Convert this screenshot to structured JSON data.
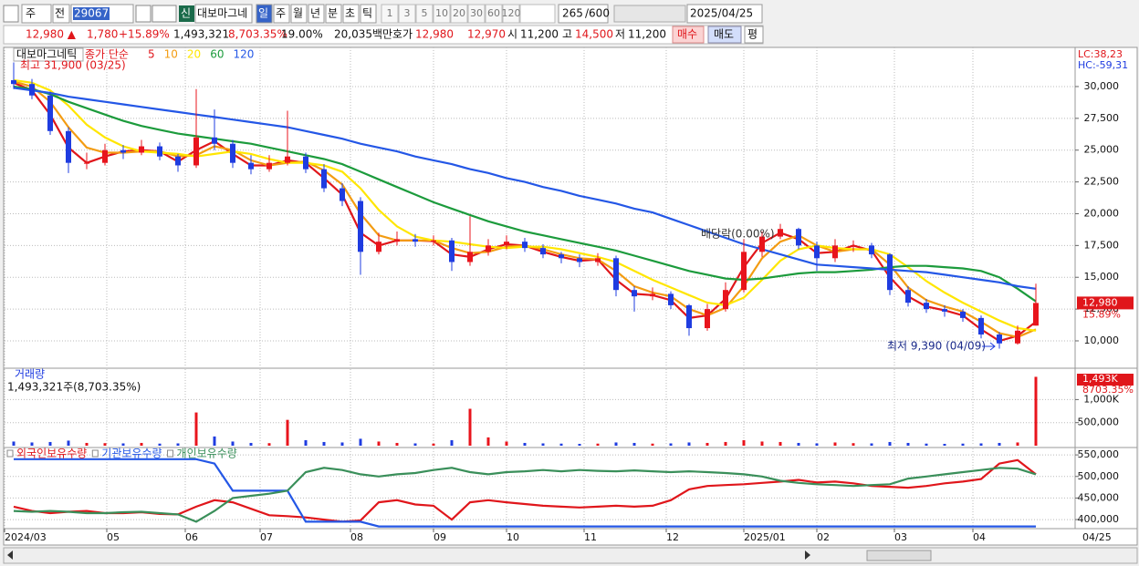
{
  "toolbar": {
    "period_button": "주",
    "prev_button": "전",
    "code": "290670",
    "new_badge": "신",
    "name": "대보마그네",
    "intervals": [
      "일",
      "주",
      "월",
      "년",
      "분",
      "초",
      "틱"
    ],
    "multipliers": [
      "1",
      "3",
      "5",
      "10",
      "20",
      "30",
      "60",
      "120"
    ],
    "count": "265",
    "count_max": "/600",
    "date": "2025/04/25"
  },
  "quote": {
    "price": "12,980 ▲",
    "change": "1,780",
    "change_rate": "+15.89%",
    "volume": "1,493,321",
    "volume_rate": "8,703.35%",
    "turnover": "19.00%",
    "amount": "20,035백만",
    "ask_label": "호가",
    "ask": "12,980",
    "bid": "12,970",
    "open_label": "시",
    "open": "11,200",
    "high_label": "고",
    "high": "14,500",
    "low_label": "저",
    "low": "11,200",
    "buy": "매수",
    "sell": "매도",
    "avg": "평"
  },
  "chart_data": [
    {
      "type": "candlestick",
      "title": "대보마그네틱",
      "legend_prefix": "종가 단순",
      "up_color": "#e8141c",
      "down_color": "#1f3ce0",
      "open": [
        30500,
        30200,
        29300,
        26500,
        24000,
        24000,
        25000,
        24800,
        25300,
        24500,
        23800,
        26000,
        25500,
        24000,
        23500,
        24000,
        24500,
        23500,
        22000,
        21000,
        17000,
        17800,
        18000,
        17800,
        17900,
        16200,
        17000,
        17500,
        17800,
        17300,
        16800,
        16500,
        16200,
        16500,
        14000,
        13500,
        13700,
        12800,
        11000,
        12500,
        14000,
        17000,
        18200,
        18800,
        17500,
        16500,
        17500,
        17500,
        16800,
        14000,
        13000,
        12500,
        12300,
        11800,
        10500,
        9800,
        11200
      ],
      "high": [
        31900,
        30600,
        29600,
        26800,
        24800,
        25500,
        25400,
        25800,
        25600,
        24700,
        29800,
        28200,
        25800,
        24600,
        24600,
        28100,
        24800,
        23900,
        22400,
        21300,
        18500,
        18600,
        18400,
        18300,
        18100,
        19800,
        18000,
        18300,
        18100,
        17600,
        17000,
        16800,
        16900,
        16700,
        14300,
        14200,
        13900,
        12900,
        12900,
        14600,
        18000,
        18600,
        19200,
        18900,
        17800,
        18000,
        17900,
        17700,
        16900,
        14300,
        13300,
        12800,
        12500,
        12000,
        10700,
        11200,
        14500
      ],
      "low": [
        29800,
        29000,
        26200,
        23200,
        23500,
        23800,
        24300,
        24600,
        24200,
        23300,
        23600,
        25000,
        23600,
        23100,
        23300,
        23800,
        23200,
        21700,
        20600,
        15200,
        16800,
        17500,
        17400,
        17500,
        15500,
        15900,
        16700,
        17200,
        17000,
        16500,
        16100,
        15800,
        15900,
        13500,
        12300,
        13200,
        12500,
        10400,
        10800,
        12300,
        13800,
        16600,
        18000,
        17200,
        15500,
        16200,
        17000,
        16500,
        13600,
        12700,
        12200,
        11900,
        11500,
        10200,
        9390,
        9700,
        11200
      ],
      "close": [
        30200,
        29300,
        26500,
        24000,
        24000,
        25000,
        24800,
        25300,
        24500,
        23800,
        26000,
        25500,
        24000,
        23500,
        24000,
        24500,
        23500,
        22000,
        21000,
        17000,
        17800,
        18000,
        17800,
        17900,
        16200,
        17000,
        17500,
        17800,
        17300,
        16800,
        16500,
        16200,
        16500,
        14000,
        13500,
        13700,
        12800,
        11000,
        12500,
        14000,
        17000,
        18200,
        18800,
        17500,
        16500,
        17500,
        17500,
        16800,
        14000,
        13000,
        12500,
        12300,
        11800,
        10500,
        9800,
        10800,
        12980
      ],
      "series": [
        {
          "name": "5",
          "color": "#e0161b",
          "values": [
            30300,
            29700,
            27800,
            25200,
            24000,
            24500,
            24900,
            25000,
            24900,
            24100,
            25000,
            25700,
            24700,
            23800,
            23800,
            24200,
            24000,
            22800,
            21500,
            18500,
            17500,
            17900,
            17900,
            17850,
            16800,
            16600,
            17200,
            17600,
            17500,
            17000,
            16600,
            16300,
            16400,
            14800,
            13700,
            13600,
            13200,
            11800,
            12000,
            13300,
            15800,
            17700,
            18500,
            18000,
            16900,
            17000,
            17500,
            17100,
            15000,
            13500,
            12700,
            12400,
            12000,
            10900,
            10000,
            10400,
            11500
          ]
        },
        {
          "name": "10",
          "color": "#f39c12",
          "values": [
            30400,
            30000,
            28800,
            26800,
            25200,
            24800,
            24800,
            24900,
            24900,
            24500,
            24600,
            25300,
            25000,
            24200,
            23800,
            24000,
            24100,
            23400,
            22300,
            20000,
            18300,
            17900,
            17900,
            17900,
            17300,
            16900,
            17000,
            17400,
            17500,
            17200,
            16800,
            16500,
            16400,
            15500,
            14300,
            13800,
            13500,
            12500,
            12000,
            12600,
            14300,
            16500,
            17800,
            18300,
            17500,
            17000,
            17200,
            17200,
            16000,
            14200,
            13200,
            12700,
            12300,
            11500,
            10600,
            10300,
            10900
          ]
        },
        {
          "name": "20",
          "color": "#ffe600",
          "values": [
            30500,
            30300,
            29700,
            28500,
            27000,
            26000,
            25300,
            24900,
            24800,
            24700,
            24500,
            24700,
            24900,
            24700,
            24300,
            24000,
            24000,
            23800,
            23300,
            22000,
            20300,
            19000,
            18200,
            17900,
            17800,
            17600,
            17400,
            17300,
            17400,
            17400,
            17200,
            16900,
            16600,
            16200,
            15500,
            14800,
            14200,
            13600,
            13000,
            12800,
            13400,
            14800,
            16300,
            17200,
            17500,
            17300,
            17200,
            17200,
            16800,
            15800,
            14700,
            13800,
            13000,
            12300,
            11600,
            11000,
            10800
          ]
        },
        {
          "name": "60",
          "color": "#1c9b3c",
          "values": [
            30000,
            29800,
            29400,
            28800,
            28300,
            27800,
            27300,
            26900,
            26600,
            26300,
            26100,
            25900,
            25700,
            25500,
            25200,
            24900,
            24600,
            24300,
            23900,
            23300,
            22700,
            22100,
            21500,
            20900,
            20400,
            19900,
            19400,
            19000,
            18600,
            18300,
            18000,
            17700,
            17400,
            17100,
            16700,
            16300,
            15900,
            15500,
            15200,
            14900,
            14800,
            14900,
            15100,
            15300,
            15400,
            15400,
            15500,
            15600,
            15800,
            15900,
            15900,
            15800,
            15700,
            15500,
            15000,
            14100,
            13100
          ]
        },
        {
          "name": "120",
          "color": "#2457e6",
          "values": [
            29900,
            29700,
            29500,
            29200,
            29000,
            28800,
            28600,
            28400,
            28200,
            28000,
            27800,
            27600,
            27400,
            27200,
            27000,
            26800,
            26500,
            26200,
            25900,
            25500,
            25200,
            24900,
            24500,
            24200,
            23900,
            23500,
            23200,
            22800,
            22500,
            22100,
            21800,
            21400,
            21100,
            20800,
            20400,
            20100,
            19600,
            19100,
            18600,
            18100,
            17600,
            17200,
            16800,
            16400,
            16000,
            15900,
            15800,
            15700,
            15600,
            15500,
            15400,
            15200,
            15000,
            14800,
            14600,
            14300,
            14100
          ]
        }
      ],
      "ylim": [
        7920,
        33080
      ],
      "yticks": [
        {
          "value": 10000,
          "label": "10,000"
        },
        {
          "value": 12500,
          "label": "12,500"
        },
        {
          "value": 15000,
          "label": "15,000"
        },
        {
          "value": 17500,
          "label": "17,500"
        },
        {
          "value": 20000,
          "label": "20,000"
        },
        {
          "value": 22500,
          "label": "22,500"
        },
        {
          "value": 25000,
          "label": "25,000"
        },
        {
          "value": 27500,
          "label": "27,500"
        },
        {
          "value": 30000,
          "label": "30,000"
        }
      ],
      "annotations": {
        "max": "최고 31,900 (03/25)",
        "min": "최저 9,390 (04/09)",
        "dividend": "배당락(0.00%)"
      },
      "corner_labels": [
        "LC:38,23",
        "HC:-59,31"
      ],
      "last_label": "12,980",
      "last_change": "15.89%"
    },
    {
      "type": "bar",
      "title": "거래량",
      "subtitle": "1,493,321주(8,703.35%)",
      "color": "#1f3ce0",
      "values": [
        90000,
        70000,
        80000,
        110000,
        60000,
        55000,
        50000,
        60000,
        45000,
        50000,
        720000,
        200000,
        90000,
        60000,
        55000,
        560000,
        120000,
        80000,
        70000,
        150000,
        90000,
        60000,
        50000,
        45000,
        120000,
        800000,
        180000,
        90000,
        60000,
        50000,
        45000,
        40000,
        45000,
        70000,
        60000,
        45000,
        50000,
        70000,
        60000,
        80000,
        120000,
        90000,
        80000,
        60000,
        50000,
        70000,
        55000,
        50000,
        80000,
        60000,
        45000,
        40000,
        45000,
        50000,
        60000,
        70000,
        1493321
      ],
      "ylim": [
        0,
        1660000
      ],
      "yticks": [
        {
          "value": 500000,
          "label": "500,000"
        },
        {
          "value": 1000000,
          "label": "1,000K"
        }
      ],
      "last_label": "1,493K",
      "last_change": "8703.35%"
    },
    {
      "type": "line",
      "series": [
        {
          "name": "외국인보유수량",
          "color": "#e0161b",
          "values": [
            430000,
            420000,
            415000,
            418000,
            420000,
            415000,
            415000,
            417000,
            413000,
            412000,
            430000,
            445000,
            440000,
            425000,
            410000,
            408000,
            405000,
            400000,
            395000,
            398000,
            440000,
            445000,
            435000,
            432000,
            400000,
            440000,
            445000,
            440000,
            436000,
            432000,
            430000,
            428000,
            430000,
            432000,
            430000,
            432000,
            445000,
            470000,
            478000,
            480000,
            482000,
            485000,
            488000,
            492000,
            486000,
            488000,
            484000,
            478000,
            476000,
            474000,
            478000,
            484000,
            488000,
            494000,
            530000,
            538000,
            505000
          ]
        },
        {
          "name": "기관보유수량",
          "color": "#2457e6",
          "values": [
            540000,
            540000,
            540000,
            540000,
            540000,
            540000,
            540000,
            540000,
            540000,
            540000,
            540000,
            530000,
            467000,
            467000,
            467000,
            467000,
            395000,
            395000,
            395000,
            395000,
            384000,
            384000,
            384000,
            384000,
            384000,
            384000,
            384000,
            384000,
            384000,
            384000,
            384000,
            384000,
            384000,
            384000,
            384000,
            384000,
            384000,
            384000,
            384000,
            384000,
            384000,
            384000,
            384000,
            384000,
            384000,
            384000,
            384000,
            384000,
            384000,
            384000,
            384000,
            384000,
            384000,
            384000,
            384000,
            384000,
            384000
          ]
        },
        {
          "name": "개인보유수량",
          "color": "#3a8f5a",
          "values": [
            420000,
            418000,
            420000,
            418000,
            415000,
            415000,
            417000,
            418000,
            415000,
            412000,
            395000,
            420000,
            450000,
            455000,
            460000,
            467000,
            510000,
            520000,
            515000,
            505000,
            500000,
            505000,
            508000,
            515000,
            520000,
            510000,
            505000,
            510000,
            512000,
            515000,
            512000,
            515000,
            513000,
            512000,
            514000,
            512000,
            510000,
            512000,
            510000,
            508000,
            505000,
            500000,
            490000,
            485000,
            482000,
            480000,
            478000,
            480000,
            482000,
            495000,
            500000,
            505000,
            510000,
            515000,
            520000,
            518000,
            505000
          ]
        }
      ],
      "ylim": [
        379000,
        565000
      ],
      "yticks": [
        {
          "value": 400000,
          "label": "400,000"
        },
        {
          "value": 450000,
          "label": "450,000"
        },
        {
          "value": 500000,
          "label": "500,000"
        },
        {
          "value": 550000,
          "label": "550,000"
        }
      ],
      "xlim": [
        -0.5,
        58.15
      ],
      "xticks": [
        {
          "value": -0.5,
          "label": "2024/03"
        },
        {
          "value": 5.1,
          "label": "05"
        },
        {
          "value": 9.4,
          "label": "06"
        },
        {
          "value": 13.5,
          "label": "07"
        },
        {
          "value": 18.45,
          "label": "08"
        },
        {
          "value": 23,
          "label": "09"
        },
        {
          "value": 27,
          "label": "10"
        },
        {
          "value": 31.25,
          "label": "11"
        },
        {
          "value": 35.75,
          "label": "12"
        },
        {
          "value": 40,
          "label": "2025/01"
        },
        {
          "value": 44,
          "label": "02"
        },
        {
          "value": 48.25,
          "label": "03"
        },
        {
          "value": 52.55,
          "label": "04"
        }
      ],
      "last_date_label": "04/25"
    }
  ]
}
